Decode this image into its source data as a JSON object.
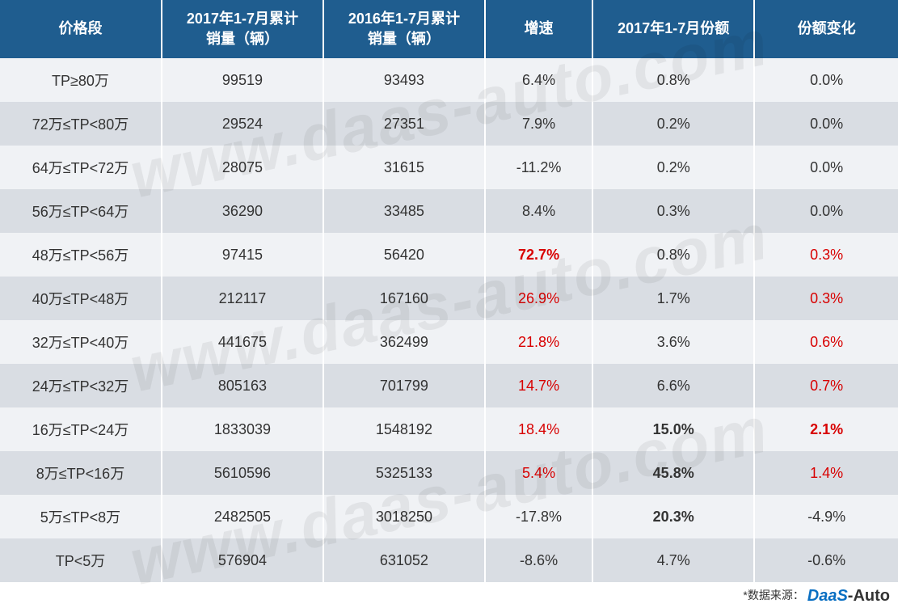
{
  "table": {
    "header_bg": "#1f5d8f",
    "header_fg": "#ffffff",
    "row_odd_bg": "#f0f2f5",
    "row_even_bg": "#d9dde3",
    "highlight_color": "#d80000",
    "font_family": "Microsoft YaHei",
    "columns": [
      {
        "key": "seg",
        "label": "价格段",
        "width": "18%"
      },
      {
        "key": "v2017",
        "label": "2017年1-7月累计\n销量（辆）",
        "width": "18%"
      },
      {
        "key": "v2016",
        "label": "2016年1-7月累计\n销量（辆）",
        "width": "18%"
      },
      {
        "key": "growth",
        "label": "增速",
        "width": "12%"
      },
      {
        "key": "share",
        "label": "2017年1-7月份额",
        "width": "18%"
      },
      {
        "key": "delta",
        "label": "份额变化",
        "width": "16%"
      }
    ],
    "rows": [
      {
        "seg": "TP≥80万",
        "v2017": "99519",
        "v2016": "93493",
        "growth": {
          "text": "6.4%"
        },
        "share": {
          "text": "0.8%"
        },
        "delta": {
          "text": "0.0%"
        }
      },
      {
        "seg": "72万≤TP<80万",
        "v2017": "29524",
        "v2016": "27351",
        "growth": {
          "text": "7.9%"
        },
        "share": {
          "text": "0.2%"
        },
        "delta": {
          "text": "0.0%"
        }
      },
      {
        "seg": "64万≤TP<72万",
        "v2017": "28075",
        "v2016": "31615",
        "growth": {
          "text": "-11.2%"
        },
        "share": {
          "text": "0.2%"
        },
        "delta": {
          "text": "0.0%"
        }
      },
      {
        "seg": "56万≤TP<64万",
        "v2017": "36290",
        "v2016": "33485",
        "growth": {
          "text": "8.4%"
        },
        "share": {
          "text": "0.3%"
        },
        "delta": {
          "text": "0.0%"
        }
      },
      {
        "seg": "48万≤TP<56万",
        "v2017": "97415",
        "v2016": "56420",
        "growth": {
          "text": "72.7%",
          "highlight": true,
          "bold": true
        },
        "share": {
          "text": "0.8%"
        },
        "delta": {
          "text": "0.3%",
          "highlight": true
        }
      },
      {
        "seg": "40万≤TP<48万",
        "v2017": "212117",
        "v2016": "167160",
        "growth": {
          "text": "26.9%",
          "highlight": true
        },
        "share": {
          "text": "1.7%"
        },
        "delta": {
          "text": "0.3%",
          "highlight": true
        }
      },
      {
        "seg": "32万≤TP<40万",
        "v2017": "441675",
        "v2016": "362499",
        "growth": {
          "text": "21.8%",
          "highlight": true
        },
        "share": {
          "text": "3.6%"
        },
        "delta": {
          "text": "0.6%",
          "highlight": true
        }
      },
      {
        "seg": "24万≤TP<32万",
        "v2017": "805163",
        "v2016": "701799",
        "growth": {
          "text": "14.7%",
          "highlight": true
        },
        "share": {
          "text": "6.6%"
        },
        "delta": {
          "text": "0.7%",
          "highlight": true
        }
      },
      {
        "seg": "16万≤TP<24万",
        "v2017": "1833039",
        "v2016": "1548192",
        "growth": {
          "text": "18.4%",
          "highlight": true
        },
        "share": {
          "text": "15.0%",
          "bold": true
        },
        "delta": {
          "text": "2.1%",
          "highlight": true,
          "bold": true
        }
      },
      {
        "seg": "8万≤TP<16万",
        "v2017": "5610596",
        "v2016": "5325133",
        "growth": {
          "text": "5.4%",
          "highlight": true
        },
        "share": {
          "text": "45.8%",
          "bold": true
        },
        "delta": {
          "text": "1.4%",
          "highlight": true
        }
      },
      {
        "seg": "5万≤TP<8万",
        "v2017": "2482505",
        "v2016": "3018250",
        "growth": {
          "text": "-17.8%"
        },
        "share": {
          "text": "20.3%",
          "bold": true
        },
        "delta": {
          "text": "-4.9%"
        }
      },
      {
        "seg": "TP<5万",
        "v2017": "576904",
        "v2016": "631052",
        "growth": {
          "text": "-8.6%"
        },
        "share": {
          "text": "4.7%"
        },
        "delta": {
          "text": "-0.6%"
        }
      }
    ]
  },
  "watermark_text": "www.daas-auto.com",
  "footer": {
    "prefix": "*数据来源：",
    "logo1": "DaaS",
    "logo2": "-Auto"
  }
}
